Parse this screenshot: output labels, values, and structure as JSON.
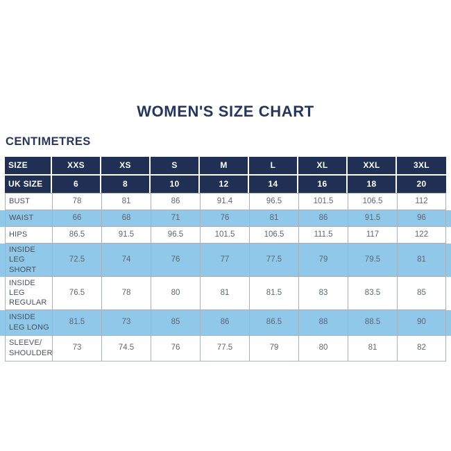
{
  "page": {
    "title": "WOMEN'S SIZE CHART",
    "unit_label": "CENTIMETRES"
  },
  "colors": {
    "header_background": "#1f3054",
    "shaded_row_background": "#8fc8e8",
    "title_text": "#24365f",
    "label_text": "#46515d",
    "value_text": "#5d6773",
    "border": "#a9b2ba",
    "header_text": "#ffffff"
  },
  "chart_data": {
    "type": "table",
    "title": "WOMEN'S SIZE CHART",
    "unit": "CENTIMETRES",
    "header_rows": [
      {
        "label": "SIZE",
        "values": [
          "XXS",
          "XS",
          "S",
          "M",
          "L",
          "XL",
          "XXL",
          "3XL"
        ]
      },
      {
        "label": "UK SIZE",
        "values": [
          "6",
          "8",
          "10",
          "12",
          "14",
          "16",
          "18",
          "20"
        ]
      }
    ],
    "rows": [
      {
        "label": "BUST",
        "shaded": false,
        "values": [
          78,
          81,
          86,
          91.4,
          96.5,
          101.5,
          106.5,
          112
        ]
      },
      {
        "label": "WAIST",
        "shaded": true,
        "values": [
          66,
          68,
          71,
          76,
          81,
          86,
          91.5,
          96
        ]
      },
      {
        "label": "HIPS",
        "shaded": false,
        "values": [
          86.5,
          91.5,
          96.5,
          101.5,
          106.5,
          111.5,
          117,
          122
        ]
      },
      {
        "label": "INSIDE LEG SHORT",
        "shaded": true,
        "values": [
          72.5,
          74,
          76,
          77,
          77.5,
          79,
          79.5,
          81
        ]
      },
      {
        "label": "INSIDE LEG REGULAR",
        "shaded": false,
        "values": [
          76.5,
          78,
          80,
          81,
          81.5,
          83,
          83.5,
          85
        ]
      },
      {
        "label": "INSIDE LEG LONG",
        "shaded": true,
        "values": [
          81.5,
          73,
          85,
          86,
          86.5,
          88,
          88.5,
          90
        ]
      },
      {
        "label": "SLEEVE/ SHOULDER",
        "shaded": false,
        "values": [
          73,
          74.5,
          76,
          77.5,
          79,
          80,
          81,
          82
        ]
      }
    ]
  }
}
